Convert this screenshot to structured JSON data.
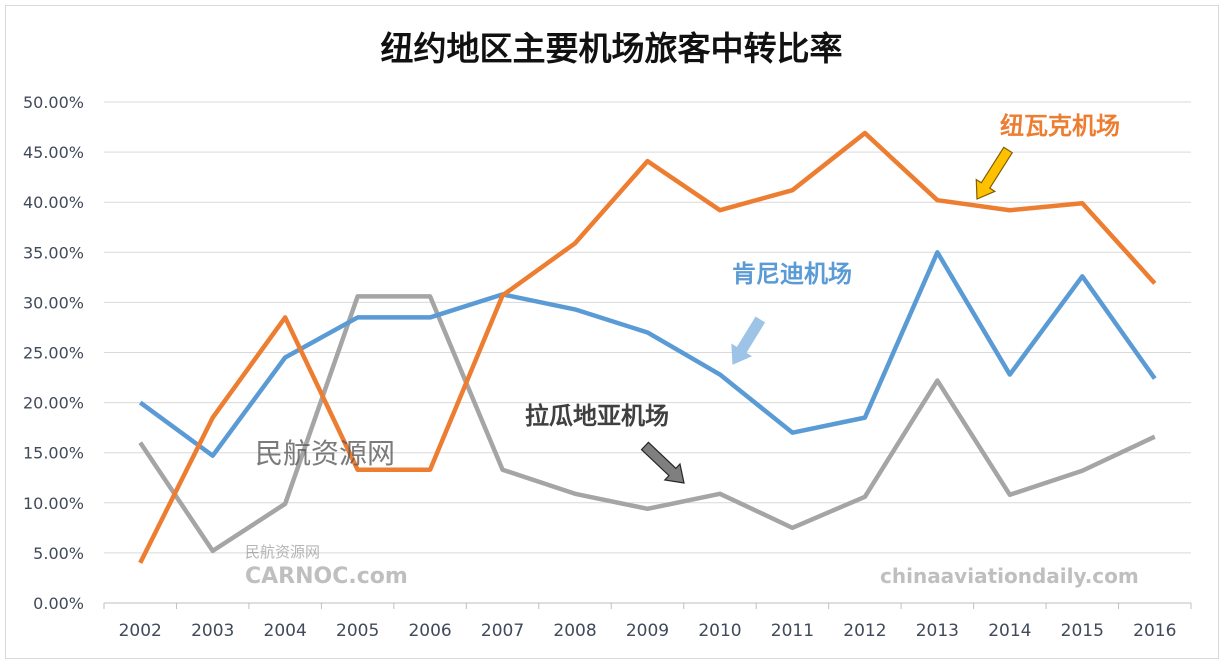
{
  "chart_data": {
    "type": "line",
    "title": "纽约地区主要机场旅客中转比率",
    "xlabel": "",
    "ylabel": "",
    "categories": [
      "2002",
      "2003",
      "2004",
      "2005",
      "2006",
      "2007",
      "2008",
      "2009",
      "2010",
      "2011",
      "2012",
      "2013",
      "2014",
      "2015",
      "2016"
    ],
    "ylim": [
      0,
      50
    ],
    "yticks": [
      "0.00%",
      "5.00%",
      "10.00%",
      "15.00%",
      "20.00%",
      "25.00%",
      "30.00%",
      "35.00%",
      "40.00%",
      "45.00%",
      "50.00%"
    ],
    "grid": true,
    "legend": "none (inline annotations)",
    "series": [
      {
        "name": "纽瓦克机场",
        "color": "#ed7d31",
        "values": [
          4.0,
          18.5,
          28.5,
          13.3,
          13.3,
          30.7,
          35.9,
          44.1,
          39.2,
          41.2,
          46.9,
          40.2,
          39.2,
          39.9,
          31.9
        ]
      },
      {
        "name": "肯尼迪机场",
        "color": "#5b9bd5",
        "values": [
          20.0,
          14.7,
          24.5,
          28.5,
          28.5,
          30.8,
          29.3,
          27.0,
          22.8,
          17.0,
          18.5,
          35.0,
          22.8,
          32.6,
          22.4
        ]
      },
      {
        "name": "拉瓜地亚机场",
        "color": "#a5a5a5",
        "values": [
          16.0,
          5.2,
          9.9,
          30.6,
          30.6,
          13.3,
          10.9,
          9.4,
          10.9,
          7.5,
          10.6,
          22.2,
          10.8,
          13.2,
          16.6
        ]
      }
    ],
    "annotation_colors": {
      "newark_arrow": "#ffc000",
      "jfk_arrow": "#9dc3e6",
      "lga_arrow": "#7f7f7f"
    }
  },
  "watermarks": {
    "center": "民航资源网",
    "bottom_left_cn": "民航资源网",
    "bottom_left_en": "CARNOC.com",
    "bottom_right": "chinaaviationdaily.com"
  }
}
